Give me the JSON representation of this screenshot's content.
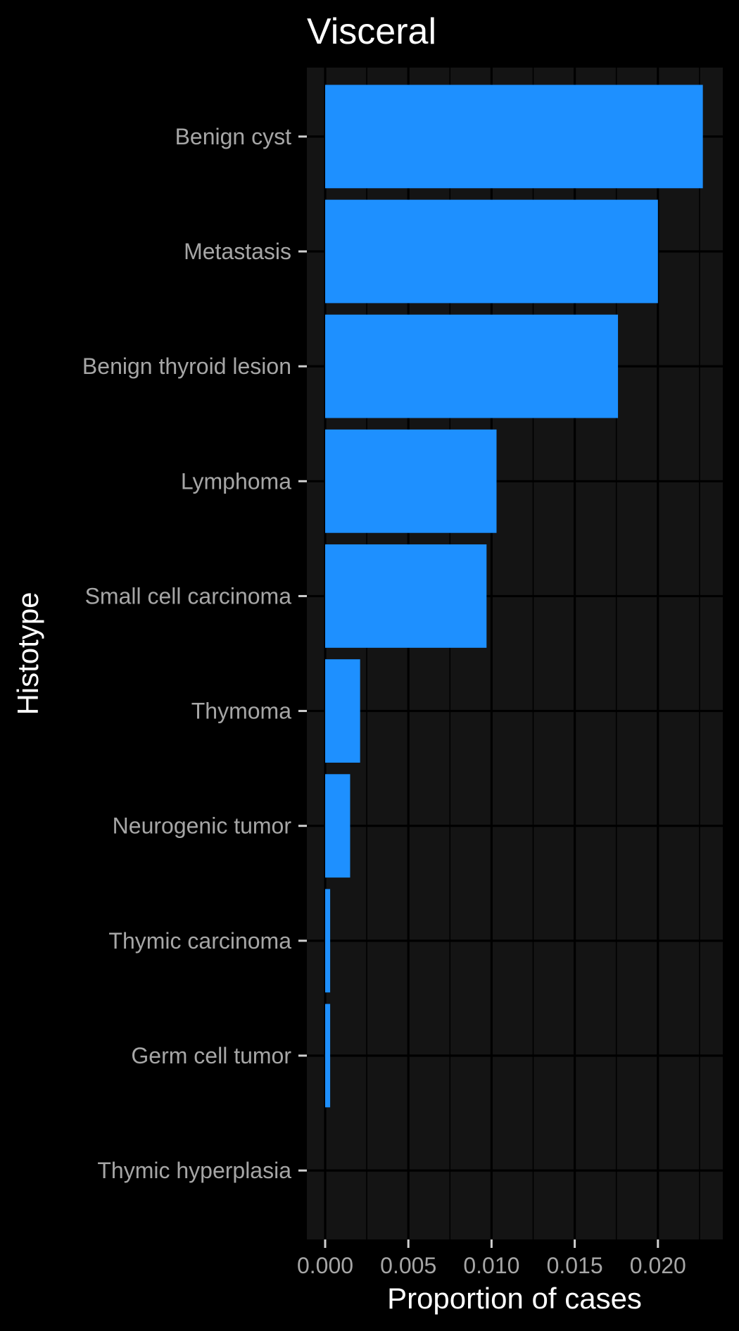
{
  "chart_data": {
    "type": "bar",
    "orientation": "horizontal",
    "title": "Visceral",
    "xlabel": "Proportion of cases",
    "ylabel": "Histotype",
    "categories": [
      "Benign cyst",
      "Metastasis",
      "Benign thyroid lesion",
      "Lymphoma",
      "Small cell carcinoma",
      "Thymoma",
      "Neurogenic tumor",
      "Thymic carcinoma",
      "Germ cell tumor",
      "Thymic hyperplasia"
    ],
    "values": [
      0.0227,
      0.02,
      0.0176,
      0.0103,
      0.0097,
      0.0021,
      0.0015,
      0.0003,
      0.0003,
      0.0
    ],
    "xlim": [
      -0.0011,
      0.0239
    ],
    "x_ticks": [
      0.0,
      0.005,
      0.01,
      0.015,
      0.02
    ],
    "x_tick_labels": [
      "0.000",
      "0.005",
      "0.010",
      "0.015",
      "0.020"
    ],
    "grid": true,
    "legend": "none"
  },
  "colors": {
    "background": "#000000",
    "panel": "#141414",
    "bar": "#1e90ff",
    "grid": "#000000",
    "title": "#ffffff",
    "tick_label": "#a6a6a6"
  }
}
